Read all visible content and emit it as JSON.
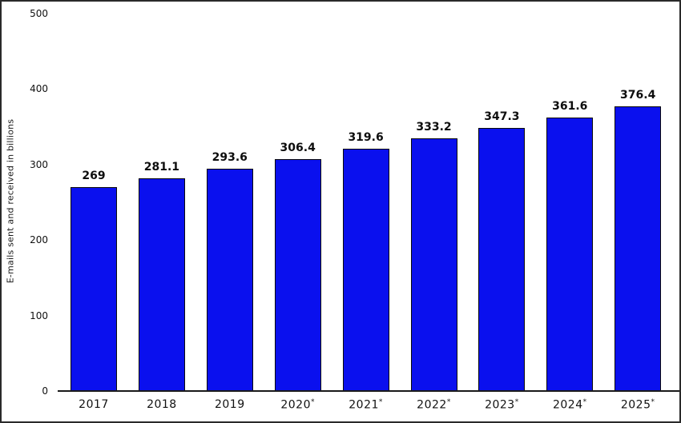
{
  "chart_data": {
    "type": "bar",
    "categories": [
      "2017",
      "2018",
      "2019",
      "2020*",
      "2021*",
      "2022*",
      "2023*",
      "2024*",
      "2025*"
    ],
    "values": [
      269,
      281.1,
      293.6,
      306.4,
      319.6,
      333.2,
      347.3,
      361.6,
      376.4
    ],
    "value_labels": [
      "269",
      "281.1",
      "293.6",
      "306.4",
      "319.6",
      "333.2",
      "347.3",
      "361.6",
      "376.4"
    ],
    "title": "",
    "xlabel": "",
    "ylabel": "E-mails sent and received in billions",
    "ylim": [
      0,
      500
    ],
    "yticks": [
      "0",
      "100",
      "200",
      "300",
      "400",
      "500"
    ],
    "grid": "off",
    "legend": "none",
    "bar_color": "#0a10ee",
    "bar_border_color": "#0a0a0a",
    "text_color": "#111111"
  }
}
